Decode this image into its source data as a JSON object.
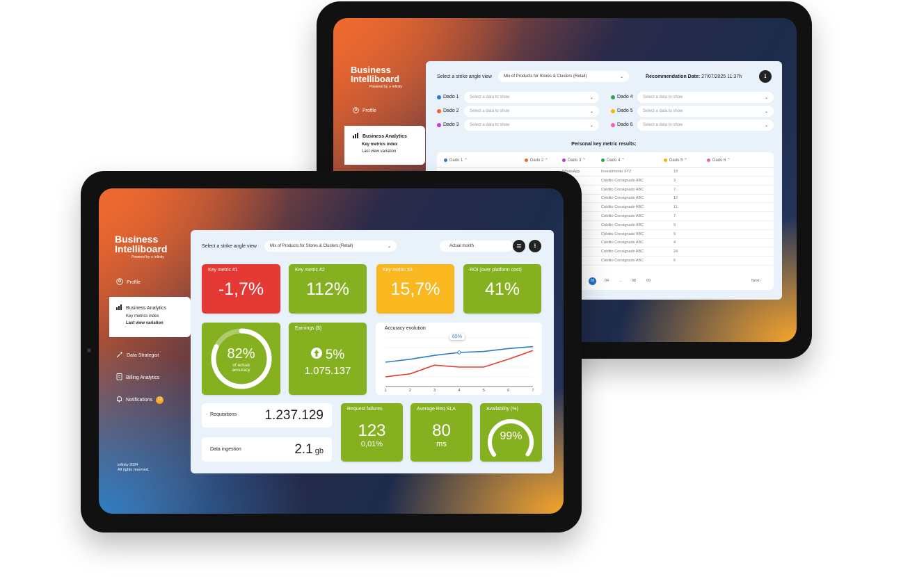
{
  "brand": {
    "line1": "Business",
    "line2": "Intelliboard",
    "powered": "Powered by ∞ infinity"
  },
  "back": {
    "sidebar": {
      "profile": "Profile",
      "section": "Business Analytics",
      "sub1": "Key metrics index",
      "sub2": "Last view variation"
    },
    "filter_label": "Select a strike angle view",
    "filter_value": "Mix of Products for Stores & Clusters (Retail)",
    "rec_label": "Recommendation Date:",
    "rec_value": "27/07/2025 11:37h",
    "selectors": [
      {
        "label": "Dado 1",
        "color": "#2a7bd0",
        "placeholder": "Select a data to show"
      },
      {
        "label": "Dado 2",
        "color": "#f0652b",
        "placeholder": "Select a data to show"
      },
      {
        "label": "Dado 3",
        "color": "#c23bd6",
        "placeholder": "Select a data to show"
      },
      {
        "label": "Dado 4",
        "color": "#28a745",
        "placeholder": "Select a data to show"
      },
      {
        "label": "Dado 5",
        "color": "#f5b800",
        "placeholder": "Select a data to show"
      },
      {
        "label": "Dado 6",
        "color": "#f060b4",
        "placeholder": "Select a data to show"
      }
    ],
    "table_title": "Personal key metric results:",
    "columns": [
      "Dado 1",
      "Dado 2",
      "Dado 3",
      "Dado 4",
      "Dado 5",
      "Dado 6"
    ],
    "rows": [
      {
        "c3": "WhatsApp",
        "c4": "Investimento XYZ",
        "c5": "18"
      },
      {
        "c3": "",
        "c4": "Crédito Consignado ABC",
        "c5": "3"
      },
      {
        "c3": "",
        "c4": "Crédito Consignado ABC",
        "c5": "7"
      },
      {
        "c3": "",
        "c4": "Crédito Consignado ABC",
        "c5": "12"
      },
      {
        "c3": "",
        "c4": "Crédito Consignado ABC",
        "c5": "11"
      },
      {
        "c3": "",
        "c4": "Crédito Consignado ABC",
        "c5": "7"
      },
      {
        "c3": "",
        "c4": "Crédito Consignado ABC",
        "c5": "9"
      },
      {
        "c3": "",
        "c4": "Crédito Consignado ABC",
        "c5": "9"
      },
      {
        "c3": "",
        "c4": "Crédito Consignado ABC",
        "c5": "4"
      },
      {
        "c3": "",
        "c4": "Crédito Consignado ABC",
        "c5": "24"
      },
      {
        "c3": "",
        "c4": "Crédito Consignado ABC",
        "c5": "6"
      }
    ],
    "pagination": {
      "current": "03",
      "p4": "04",
      "ellipsis": "...",
      "p8": "08",
      "p9": "09",
      "next": "Next ›"
    }
  },
  "front": {
    "sidebar": {
      "profile": "Profile",
      "section": "Business Analytics",
      "sub1": "Key metrics index",
      "sub2": "Last view variation",
      "data_strategist": "Data Strategist",
      "billing": "Billing Analytics",
      "notifications": "Notifications",
      "notif_count": "12",
      "footer1": "infinity 2024",
      "footer2": "All rights reserved."
    },
    "filter_label": "Select a strike angle view",
    "filter_value": "Mix of Products for Stores & Clusters (Retail)",
    "period": "Actual month",
    "kpis": [
      {
        "title": "Key metric #1",
        "value": "-1,7%",
        "color": "#e53935"
      },
      {
        "title": "Key metric #2",
        "value": "112%",
        "color": "#85b020"
      },
      {
        "title": "Key metric #3",
        "value": "15,7%",
        "color": "#f9b820"
      },
      {
        "title": "ROI (over platform cost)",
        "value": "41%",
        "color": "#85b020"
      }
    ],
    "accuracy": {
      "value": "82%",
      "label1": "of actual",
      "label2": "accuracy",
      "fraction": 0.82
    },
    "earnings": {
      "title": "Earnings ($)",
      "change": "5%",
      "amount": "1.075.137"
    },
    "chart": {
      "title": "Accuracy evolution",
      "tooltip": "65%"
    },
    "requisitions": {
      "label": "Requisitions",
      "value": "1.237.129"
    },
    "ingestion": {
      "label": "Data ingestion",
      "value": "2.1",
      "unit": "gb"
    },
    "failures": {
      "title": "Request failures",
      "value": "123",
      "pct": "0,01%"
    },
    "sla": {
      "title": "Average Req SLA",
      "value": "80",
      "unit": "ms"
    },
    "availability": {
      "title": "Availability (%)",
      "value": "99%",
      "fraction": 0.99
    }
  },
  "chart_data": {
    "type": "line",
    "title": "Accuracy evolution",
    "x": [
      1,
      2,
      3,
      4,
      5,
      6,
      7
    ],
    "series": [
      {
        "color": "#2a7bd0",
        "values": [
          55,
          58,
          62,
          65,
          66,
          69,
          71
        ]
      },
      {
        "color": "#e53935",
        "values": [
          40,
          43,
          52,
          50,
          50,
          58,
          67
        ]
      }
    ],
    "ylim": [
      30,
      80
    ],
    "grid": true
  }
}
